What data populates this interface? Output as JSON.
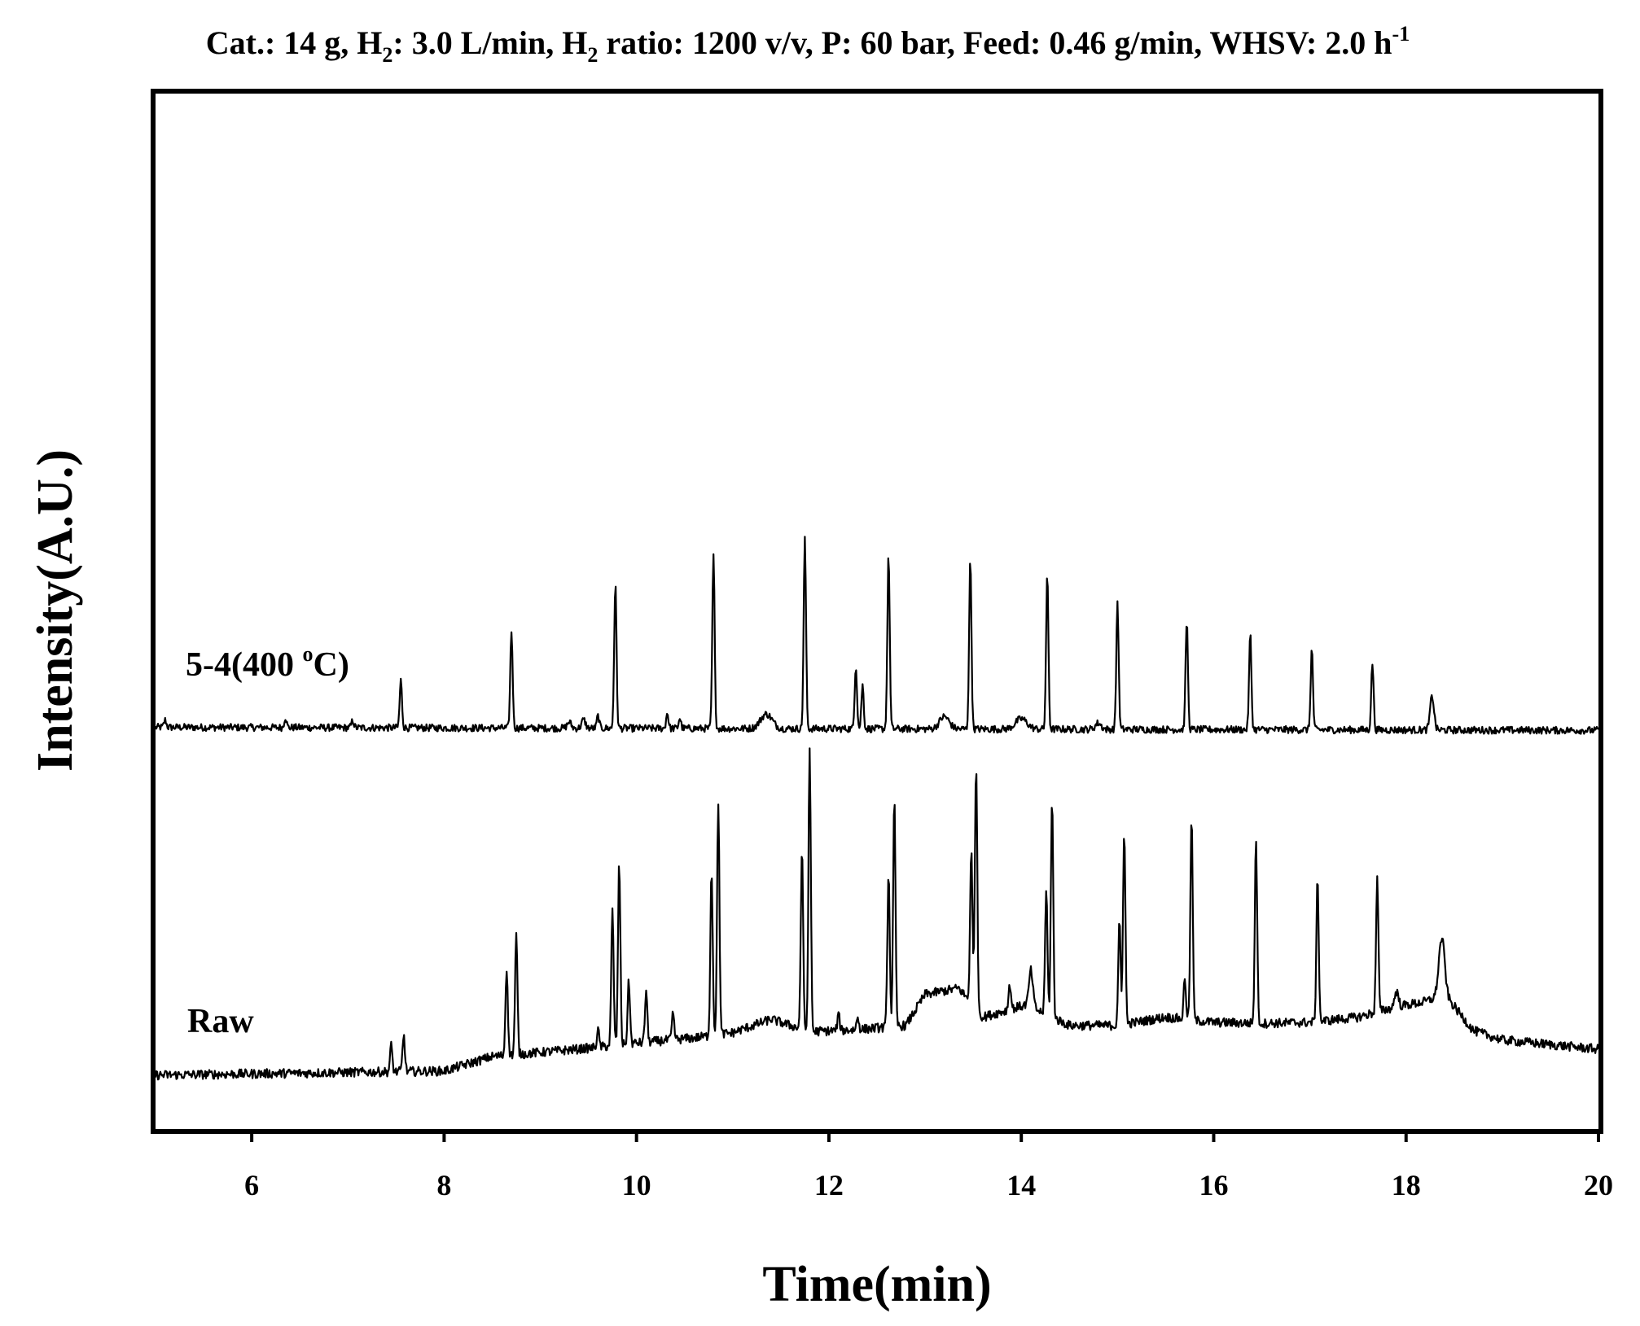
{
  "chart_data": {
    "type": "line",
    "title_parts": {
      "t1": "Cat.: 14 g, H",
      "sub1": "2",
      "t2": ": 3.0 L/min, H",
      "sub2": "2",
      "t3": " ratio: 1200 v/v, P: 60 bar, Feed: 0.46 g/min, WHSV: 2.0 h",
      "sup1": "-1"
    },
    "xlabel": "Time(min)",
    "ylabel": "Intensity(A.U.)",
    "xlim": [
      5,
      20
    ],
    "ylim": [
      0,
      100
    ],
    "x_ticks": [
      6,
      8,
      10,
      12,
      14,
      16,
      18,
      20
    ],
    "grid": false,
    "legend": "none",
    "series": [
      {
        "name": "5-4(400 °C)",
        "label_parts": {
          "main": "5-4(400 ",
          "sup": "o",
          "end": "C)"
        },
        "color": "#000000",
        "baseline": [
          [
            5.0,
            38.8
          ],
          [
            20.0,
            38.5
          ]
        ],
        "noise_amplitude": 0.35,
        "peaks": [
          {
            "x": 5.1,
            "height": 0.7,
            "width": 0.012
          },
          {
            "x": 6.35,
            "height": 1.0,
            "width": 0.012
          },
          {
            "x": 7.05,
            "height": 0.7,
            "width": 0.012
          },
          {
            "x": 7.55,
            "height": 4.6,
            "width": 0.012
          },
          {
            "x": 8.7,
            "height": 9.4,
            "width": 0.012
          },
          {
            "x": 9.3,
            "height": 0.6,
            "width": 0.02
          },
          {
            "x": 9.45,
            "height": 0.8,
            "width": 0.02
          },
          {
            "x": 9.6,
            "height": 1.2,
            "width": 0.012
          },
          {
            "x": 9.78,
            "height": 13.9,
            "width": 0.012
          },
          {
            "x": 10.32,
            "height": 1.5,
            "width": 0.012
          },
          {
            "x": 10.45,
            "height": 1.0,
            "width": 0.012
          },
          {
            "x": 10.8,
            "height": 16.7,
            "width": 0.012
          },
          {
            "x": 11.35,
            "height": 1.4,
            "width": 0.06
          },
          {
            "x": 11.75,
            "height": 18.3,
            "width": 0.012
          },
          {
            "x": 12.28,
            "height": 6.1,
            "width": 0.012
          },
          {
            "x": 12.35,
            "height": 4.2,
            "width": 0.012
          },
          {
            "x": 12.62,
            "height": 16.8,
            "width": 0.012
          },
          {
            "x": 13.2,
            "height": 1.2,
            "width": 0.05
          },
          {
            "x": 13.47,
            "height": 16.3,
            "width": 0.012
          },
          {
            "x": 14.0,
            "height": 1.0,
            "width": 0.06
          },
          {
            "x": 14.27,
            "height": 14.8,
            "width": 0.012
          },
          {
            "x": 14.8,
            "height": 0.6,
            "width": 0.03
          },
          {
            "x": 15.0,
            "height": 12.3,
            "width": 0.012
          },
          {
            "x": 15.72,
            "height": 10.5,
            "width": 0.012
          },
          {
            "x": 16.38,
            "height": 9.2,
            "width": 0.012
          },
          {
            "x": 17.02,
            "height": 7.8,
            "width": 0.012
          },
          {
            "x": 17.65,
            "height": 6.5,
            "width": 0.012
          },
          {
            "x": 18.27,
            "height": 3.3,
            "width": 0.02
          }
        ]
      },
      {
        "name": "Raw",
        "label_parts": {
          "main": "Raw",
          "sup": "",
          "end": ""
        },
        "color": "#000000",
        "baseline": [
          [
            5.0,
            5.2
          ],
          [
            8.0,
            5.6
          ],
          [
            8.5,
            7.0
          ],
          [
            9.5,
            7.8
          ],
          [
            10.0,
            8.3
          ],
          [
            10.6,
            8.8
          ],
          [
            11.0,
            9.3
          ],
          [
            11.4,
            10.6
          ],
          [
            11.8,
            9.4
          ],
          [
            12.3,
            9.6
          ],
          [
            12.8,
            10.0
          ],
          [
            13.0,
            13.0
          ],
          [
            13.35,
            13.6
          ],
          [
            13.6,
            10.8
          ],
          [
            14.05,
            12.0
          ],
          [
            14.5,
            10.0
          ],
          [
            15.0,
            10.0
          ],
          [
            15.5,
            10.8
          ],
          [
            16.0,
            10.3
          ],
          [
            16.5,
            10.2
          ],
          [
            17.0,
            10.3
          ],
          [
            17.5,
            10.8
          ],
          [
            17.9,
            11.8
          ],
          [
            18.2,
            12.3
          ],
          [
            18.4,
            13.0
          ],
          [
            18.7,
            9.5
          ],
          [
            19.0,
            8.6
          ],
          [
            20.0,
            7.7
          ]
        ],
        "noise_amplitude": 0.45,
        "peaks": [
          {
            "x": 7.45,
            "height": 2.5,
            "width": 0.012
          },
          {
            "x": 7.58,
            "height": 3.5,
            "width": 0.012
          },
          {
            "x": 8.65,
            "height": 8.5,
            "width": 0.012
          },
          {
            "x": 8.75,
            "height": 11.5,
            "width": 0.012
          },
          {
            "x": 9.6,
            "height": 1.6,
            "width": 0.012
          },
          {
            "x": 9.75,
            "height": 13.0,
            "width": 0.012
          },
          {
            "x": 9.82,
            "height": 17.5,
            "width": 0.012
          },
          {
            "x": 9.92,
            "height": 6.0,
            "width": 0.012
          },
          {
            "x": 10.1,
            "height": 5.0,
            "width": 0.012
          },
          {
            "x": 10.38,
            "height": 2.5,
            "width": 0.012
          },
          {
            "x": 10.78,
            "height": 16.0,
            "width": 0.012
          },
          {
            "x": 10.85,
            "height": 22.5,
            "width": 0.012
          },
          {
            "x": 11.72,
            "height": 17.5,
            "width": 0.012
          },
          {
            "x": 11.8,
            "height": 27.0,
            "width": 0.012
          },
          {
            "x": 12.1,
            "height": 1.5,
            "width": 0.012
          },
          {
            "x": 12.3,
            "height": 1.2,
            "width": 0.012
          },
          {
            "x": 12.62,
            "height": 15.0,
            "width": 0.012
          },
          {
            "x": 12.68,
            "height": 22.0,
            "width": 0.012
          },
          {
            "x": 13.48,
            "height": 15.0,
            "width": 0.012
          },
          {
            "x": 13.53,
            "height": 24.0,
            "width": 0.012
          },
          {
            "x": 13.88,
            "height": 2.5,
            "width": 0.012
          },
          {
            "x": 14.1,
            "height": 3.5,
            "width": 0.02
          },
          {
            "x": 14.26,
            "height": 12.0,
            "width": 0.012
          },
          {
            "x": 14.32,
            "height": 21.0,
            "width": 0.012
          },
          {
            "x": 15.02,
            "height": 10.0,
            "width": 0.012
          },
          {
            "x": 15.07,
            "height": 19.0,
            "width": 0.012
          },
          {
            "x": 15.7,
            "height": 4.0,
            "width": 0.012
          },
          {
            "x": 15.77,
            "height": 19.5,
            "width": 0.012
          },
          {
            "x": 16.44,
            "height": 18.0,
            "width": 0.012
          },
          {
            "x": 17.08,
            "height": 14.0,
            "width": 0.012
          },
          {
            "x": 17.7,
            "height": 12.8,
            "width": 0.012
          },
          {
            "x": 17.9,
            "height": 1.5,
            "width": 0.02
          },
          {
            "x": 18.37,
            "height": 5.5,
            "width": 0.03
          }
        ]
      }
    ]
  }
}
